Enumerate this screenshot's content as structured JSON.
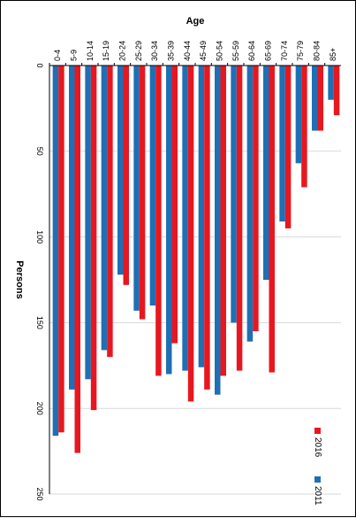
{
  "chart_data": {
    "type": "bar",
    "orientation": "horizontal-age-axis-top",
    "xlabel": "Age",
    "ylabel": "Persons",
    "ylim": [
      0,
      250
    ],
    "ticks": [
      0,
      50,
      100,
      150,
      200,
      250
    ],
    "grid": true,
    "legend_position": "bottom-right",
    "categories": [
      "0-4",
      "5-9",
      "10-14",
      "15-19",
      "20-24",
      "25-29",
      "30-34",
      "35-39",
      "40-44",
      "45-49",
      "50-54",
      "55-59",
      "60-64",
      "65-69",
      "70-74",
      "75-79",
      "80-84",
      "85+"
    ],
    "series": [
      {
        "name": "2011",
        "color": "#1f6fb5",
        "values": [
          216,
          189,
          183,
          166,
          122,
          143,
          140,
          180,
          178,
          176,
          192,
          150,
          161,
          125,
          91,
          57,
          38,
          20
        ]
      },
      {
        "name": "2016",
        "color": "#e8171f",
        "values": [
          214,
          226,
          201,
          170,
          128,
          148,
          181,
          162,
          196,
          189,
          181,
          178,
          155,
          179,
          95,
          71,
          38,
          29
        ]
      }
    ]
  }
}
